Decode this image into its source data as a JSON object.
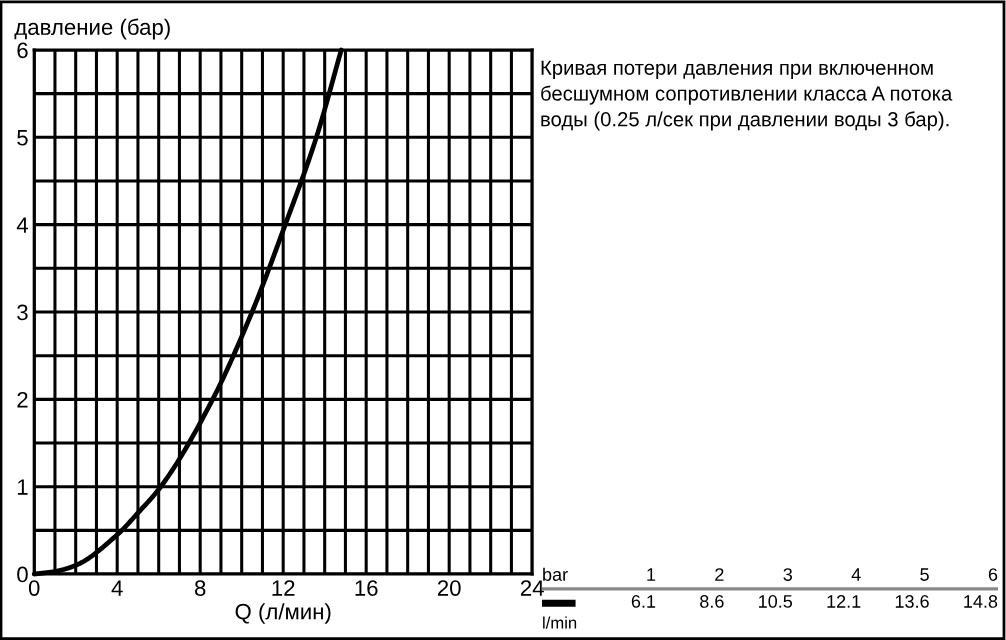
{
  "chart_data": [
    {
      "type": "line",
      "ylabel": "давление (бар)",
      "xlabel": "Q (л/мин)",
      "x": [
        0,
        1,
        2,
        4,
        5,
        6.1,
        8.6,
        10.5,
        12.1,
        13.6,
        14.8
      ],
      "series": [
        {
          "color": "#000000",
          "values": [
            0,
            0.03,
            0.1,
            0.45,
            0.7,
            1,
            2,
            3,
            4,
            5,
            6
          ]
        }
      ],
      "xlim": [
        0,
        24
      ],
      "ylim": [
        0,
        6
      ],
      "xticks": [
        0,
        {
          "value": 1,
          "label": null
        },
        {
          "value": 2,
          "label": null
        },
        {
          "value": 3,
          "label": null
        },
        4,
        {
          "value": 5,
          "label": null
        },
        {
          "value": 6,
          "label": null
        },
        {
          "value": 7,
          "label": null
        },
        8,
        {
          "value": 9,
          "label": null
        },
        {
          "value": 10,
          "label": null
        },
        {
          "value": 11,
          "label": null
        },
        12,
        {
          "value": 13,
          "label": null
        },
        {
          "value": 14,
          "label": null
        },
        {
          "value": 15,
          "label": null
        },
        16,
        {
          "value": 17,
          "label": null
        },
        {
          "value": 18,
          "label": null
        },
        {
          "value": 19,
          "label": null
        },
        20,
        {
          "value": 21,
          "label": null
        },
        {
          "value": 22,
          "label": null
        },
        {
          "value": 23,
          "label": null
        },
        24
      ],
      "yticks": [
        0,
        {
          "value": 0.5,
          "label": null
        },
        1,
        {
          "value": 1.5,
          "label": null
        },
        2,
        {
          "value": 2.5,
          "label": null
        },
        3,
        {
          "value": 3.5,
          "label": null
        },
        4,
        {
          "value": 4.5,
          "label": null
        },
        5,
        {
          "value": 5.5,
          "label": null
        },
        6
      ],
      "grid": true,
      "line_style": "solid",
      "marker": "none",
      "annotations": [
        "Кривая потери давления при включенном\nбесшумном сопротивлении класса A потока\nводы (0.25 л/сек при давлении воды 3 бар).",
        "bar",
        "1",
        "2",
        "3",
        "4",
        "5",
        "6",
        "6.1",
        "8.6",
        "10.5",
        "12.1",
        "13.6",
        "14.8",
        "l/min"
      ]
    }
  ]
}
